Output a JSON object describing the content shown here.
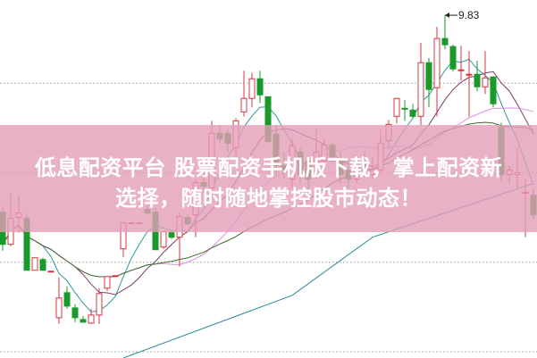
{
  "banner": {
    "line1": "低息配资平台 股票配资手机版下载，掌上配资新",
    "line2": "选择，随时随地掌控股市动态！",
    "color": "#e49eb6"
  },
  "chart_data": {
    "type": "candlestick",
    "title": "",
    "ylim": [
      6.0,
      10.0
    ],
    "gridlines": [
      9.07,
      8.07,
      7.07,
      6.07
    ],
    "grid": "dotted horizontal",
    "up_color": "#d9333f",
    "down_color": "#1a9a2a",
    "max_annotation": {
      "label": "9.83",
      "value": 9.83,
      "index": 55
    },
    "candles_ohlc": [
      [
        7.63,
        7.7,
        7.2,
        7.27
      ],
      [
        7.27,
        7.85,
        7.25,
        7.56
      ],
      [
        7.57,
        7.82,
        7.4,
        7.62
      ],
      [
        7.56,
        7.6,
        6.98,
        6.98
      ],
      [
        6.98,
        7.12,
        6.98,
        7.12
      ],
      [
        7.1,
        7.12,
        6.98,
        6.98
      ],
      [
        6.97,
        6.97,
        6.97,
        6.97
      ],
      [
        6.45,
        6.9,
        6.38,
        6.67
      ],
      [
        6.73,
        6.8,
        6.55,
        6.58
      ],
      [
        6.56,
        6.6,
        6.4,
        6.45
      ],
      [
        6.43,
        6.47,
        6.4,
        6.4
      ],
      [
        6.39,
        6.55,
        6.38,
        6.48
      ],
      [
        6.48,
        6.78,
        6.38,
        6.72
      ],
      [
        6.78,
        6.91,
        6.75,
        6.91
      ],
      [
        6.92,
        6.92,
        6.92,
        6.92
      ],
      [
        7.22,
        7.51,
        7.13,
        7.51
      ],
      [
        7.51,
        7.51,
        7.51,
        7.51
      ],
      [
        7.51,
        7.51,
        7.51,
        7.51
      ],
      [
        7.66,
        7.7,
        7.6,
        7.62
      ],
      [
        7.63,
        7.68,
        7.21,
        7.21
      ],
      [
        7.24,
        7.41,
        7.22,
        7.41
      ],
      [
        7.4,
        7.42,
        7.33,
        7.35
      ],
      [
        7.35,
        7.62,
        7.02,
        7.58
      ],
      [
        7.57,
        7.6,
        7.48,
        7.5
      ],
      [
        7.6,
        8.0,
        7.35,
        7.96
      ],
      [
        7.96,
        8.1,
        7.85,
        7.92
      ],
      [
        7.9,
        8.65,
        7.8,
        8.51
      ],
      [
        8.51,
        8.6,
        8.4,
        8.45
      ],
      [
        8.51,
        8.55,
        8.3,
        8.4
      ],
      [
        8.35,
        8.68,
        8.25,
        8.65
      ],
      [
        8.75,
        9.21,
        8.7,
        8.9
      ],
      [
        8.9,
        9.19,
        8.8,
        9.12
      ],
      [
        9.12,
        9.21,
        8.85,
        8.94
      ],
      [
        8.92,
        8.92,
        8.4,
        8.42
      ],
      [
        8.5,
        8.6,
        8.05,
        8.15
      ],
      [
        8.15,
        8.3,
        8.0,
        8.1
      ],
      [
        8.0,
        8.45,
        7.9,
        8.37
      ],
      [
        8.3,
        8.35,
        7.95,
        8.05
      ],
      [
        8.2,
        8.25,
        7.85,
        8.0
      ],
      [
        8.05,
        8.55,
        8.0,
        8.3
      ],
      [
        8.2,
        8.45,
        8.1,
        8.38
      ],
      [
        8.38,
        8.4,
        8.2,
        8.25
      ],
      [
        8.2,
        8.3,
        7.95,
        8.05
      ],
      [
        8.1,
        8.15,
        7.9,
        8.0
      ],
      [
        8.0,
        8.2,
        7.95,
        8.15
      ],
      [
        8.15,
        8.3,
        8.05,
        8.1
      ],
      [
        8.05,
        8.25,
        8.0,
        8.1
      ],
      [
        8.1,
        8.55,
        8.05,
        8.4
      ],
      [
        8.43,
        8.66,
        8.35,
        8.61
      ],
      [
        8.7,
        8.9,
        8.62,
        8.9
      ],
      [
        8.79,
        8.88,
        8.65,
        8.78
      ],
      [
        8.77,
        8.84,
        8.68,
        8.7
      ],
      [
        8.7,
        9.52,
        8.6,
        9.3
      ],
      [
        9.3,
        9.35,
        8.8,
        9.0
      ],
      [
        9.02,
        9.7,
        8.7,
        9.57
      ],
      [
        9.57,
        9.83,
        9.45,
        9.5
      ],
      [
        9.48,
        9.5,
        9.2,
        9.23
      ],
      [
        9.22,
        9.49,
        9.1,
        9.22
      ],
      [
        9.17,
        9.43,
        8.7,
        9.17
      ],
      [
        9.17,
        9.32,
        8.98,
        9.03
      ],
      [
        9.03,
        9.43,
        8.95,
        9.13
      ],
      [
        9.14,
        9.15,
        8.8,
        8.84
      ],
      [
        8.58,
        8.63,
        7.98,
        8.05
      ],
      [
        8.05,
        8.15,
        7.95,
        8.1
      ],
      [
        8.05,
        8.35,
        7.9,
        8.07
      ],
      [
        7.85,
        8.0,
        7.35,
        7.85
      ],
      [
        7.82,
        7.9,
        7.55,
        7.6
      ]
    ],
    "moving_averages": [
      {
        "period": 5,
        "color": "#2a9a9a"
      },
      {
        "period": 10,
        "color": "#7a3a6a"
      },
      {
        "period": 20,
        "color": "#e08ce0"
      },
      {
        "period": 30,
        "color": "#3a6a2a"
      }
    ],
    "long_line": {
      "color": "#2a8a9a",
      "points": [
        [
          15,
          6.0
        ],
        [
          36,
          6.7
        ],
        [
          46,
          7.35
        ],
        [
          66,
          7.95
        ]
      ]
    }
  }
}
